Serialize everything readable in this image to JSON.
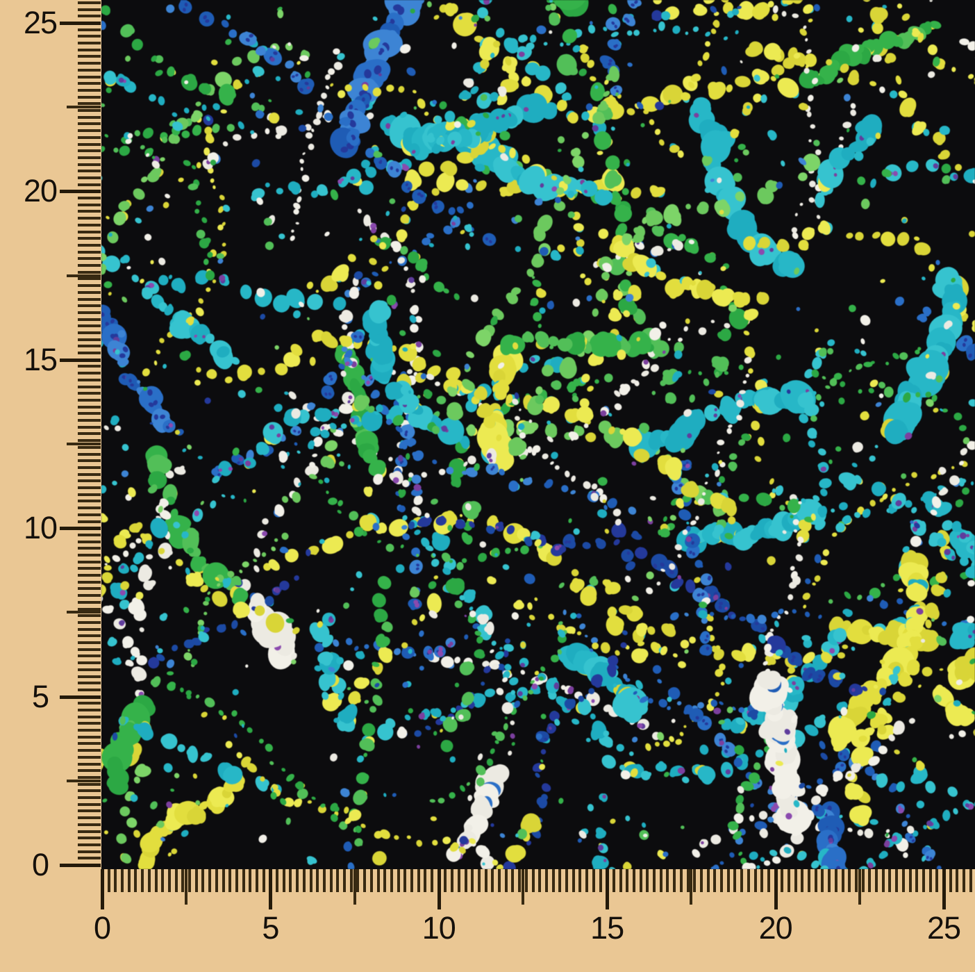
{
  "rulers": {
    "background_color": "#eac794",
    "tick_color": "#382a12",
    "number_color": "#15100b",
    "left_labels": [
      "0",
      "5",
      "10",
      "15",
      "20",
      "25"
    ],
    "bottom_labels": [
      "0",
      "5",
      "10",
      "15",
      "20",
      "25"
    ]
  },
  "fabric": {
    "background_color": "#0c0c0e",
    "pattern": "speckled-dot-clusters",
    "seed": 20180642,
    "cluster_count": 182,
    "solo_dot_count": 730,
    "palette": [
      {
        "name": "teal",
        "variants": [
          "#27b7c7",
          "#1fadc0",
          "#36c3cf"
        ],
        "weight": 0.27,
        "heavy_chance": 0.34
      },
      {
        "name": "green",
        "variants": [
          "#35b24a",
          "#2ca844",
          "#52bf58"
        ],
        "weight": 0.18,
        "heavy_chance": 0.22
      },
      {
        "name": "yellow",
        "variants": [
          "#e2de3e",
          "#d9d537",
          "#ecea52"
        ],
        "weight": 0.2,
        "heavy_chance": 0.28
      },
      {
        "name": "white",
        "variants": [
          "#f2f0e8",
          "#eceae2"
        ],
        "weight": 0.15,
        "heavy_chance": 0.05
      },
      {
        "name": "blue",
        "variants": [
          "#2a6fc7",
          "#1f5cb5",
          "#3d84d4"
        ],
        "weight": 0.12,
        "heavy_chance": 0.18
      },
      {
        "name": "deep-blue",
        "variants": [
          "#1c4aa4",
          "#24399b"
        ],
        "weight": 0.04,
        "heavy_chance": 0.1
      },
      {
        "name": "light-green",
        "variants": [
          "#6cc95e",
          "#7dd468"
        ],
        "weight": 0.04,
        "heavy_chance": 0.05
      }
    ],
    "accent_purple": [
      "#7c3f9e",
      "#8b4aae",
      "#5f3d9c"
    ],
    "pairs": {
      "teal": "yellow",
      "yellow": "teal",
      "green": "yellow",
      "blue": "teal",
      "deep-blue": "teal",
      "white": "blue",
      "light-green": "yellow"
    }
  }
}
